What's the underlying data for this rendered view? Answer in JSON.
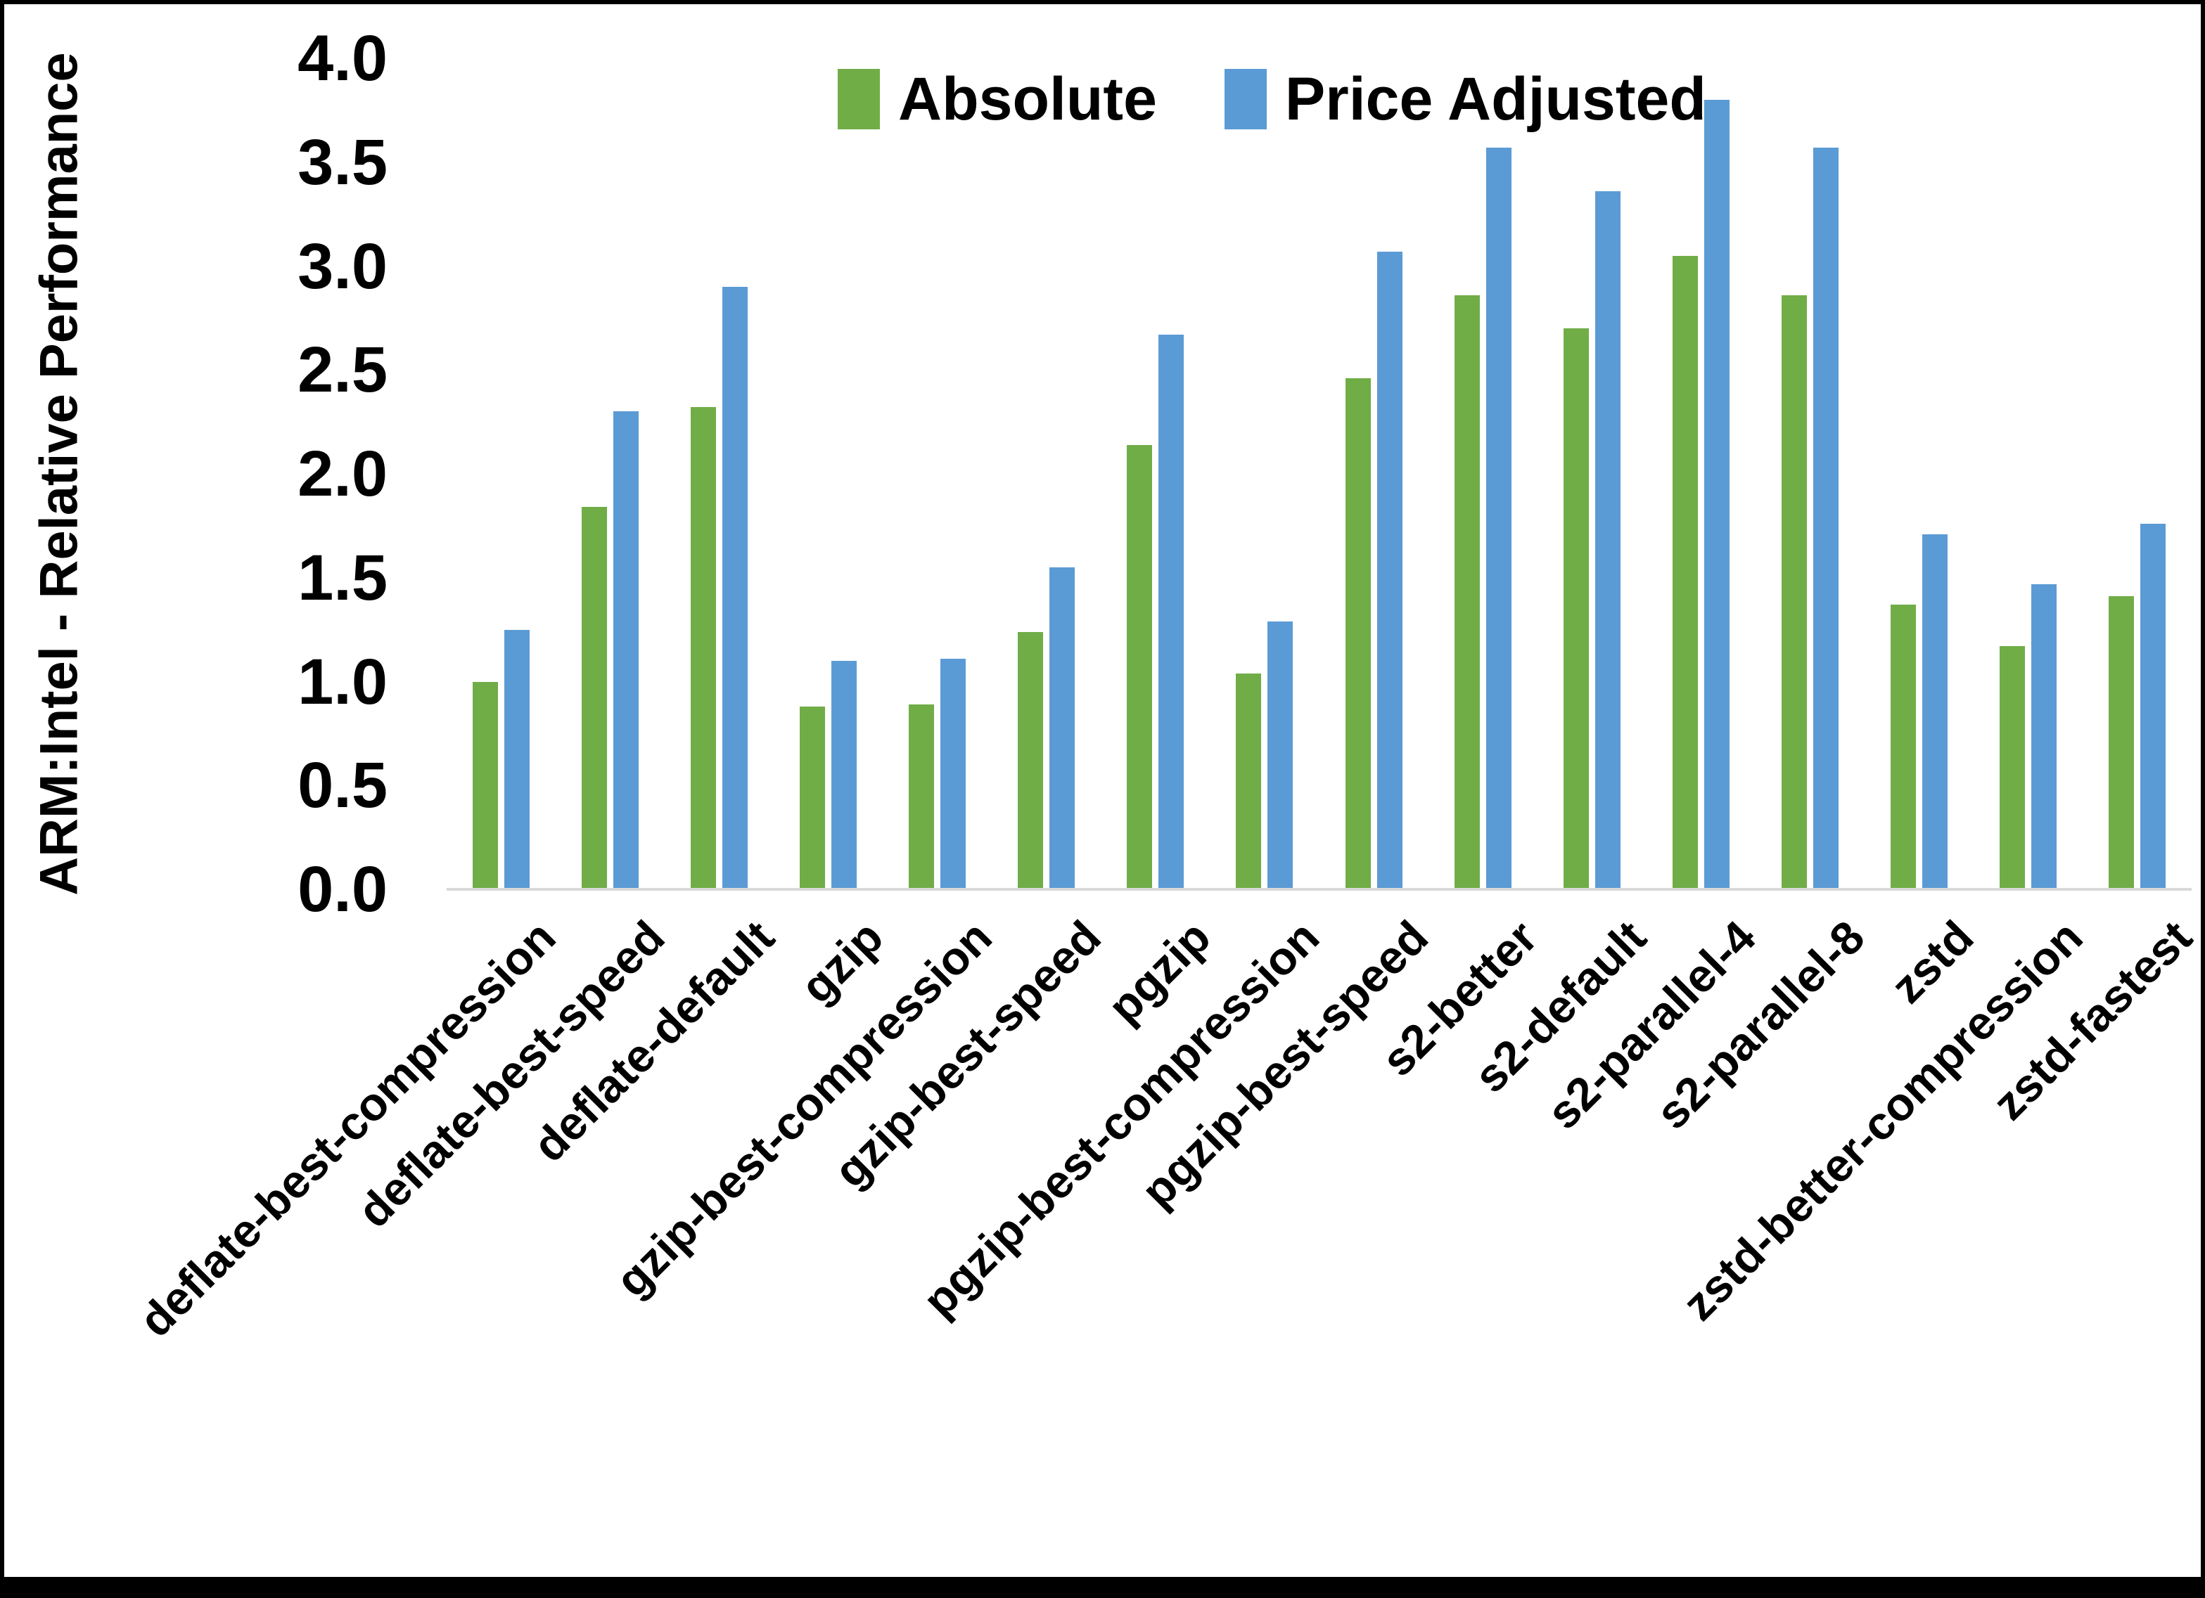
{
  "chart_data": {
    "type": "bar",
    "title": "",
    "xlabel": "",
    "ylabel": "ARM:Intel - Relative Performance",
    "ylim": [
      0,
      4
    ],
    "ytick_step": 0.5,
    "yticks": [
      "4.0",
      "3.5",
      "3.0",
      "2.5",
      "2.0",
      "1.5",
      "1.0",
      "0.5",
      "0.0"
    ],
    "grid": false,
    "legend_position": "top-center",
    "categories": [
      "deflate-best-compression",
      "deflate-best-speed",
      "deflate-default",
      "gzip",
      "gzip-best-compression",
      "gzip-best-speed",
      "pgzip",
      "pgzip-best-compression",
      "pgzip-best-speed",
      "s2-better",
      "s2-default",
      "s2-parallel-4",
      "s2-parallel-8",
      "zstd",
      "zstd-better-compression",
      "zstd-fastest"
    ],
    "series": [
      {
        "name": "Absolute",
        "color": "#70AD47",
        "values": [
          1.0,
          1.84,
          2.32,
          0.88,
          0.89,
          1.24,
          2.14,
          1.04,
          2.46,
          2.86,
          2.7,
          3.05,
          2.86,
          1.37,
          1.17,
          1.41
        ]
      },
      {
        "name": "Price Adjusted",
        "color": "#5B9BD5",
        "values": [
          1.25,
          2.3,
          2.9,
          1.1,
          1.11,
          1.55,
          2.67,
          1.29,
          3.07,
          3.57,
          3.36,
          3.8,
          3.57,
          1.71,
          1.47,
          1.76
        ]
      }
    ]
  },
  "colors": {
    "background": "#FFFFFF",
    "frame": "#000000",
    "axis_line": "#D9D9D9",
    "text": "#000000"
  }
}
